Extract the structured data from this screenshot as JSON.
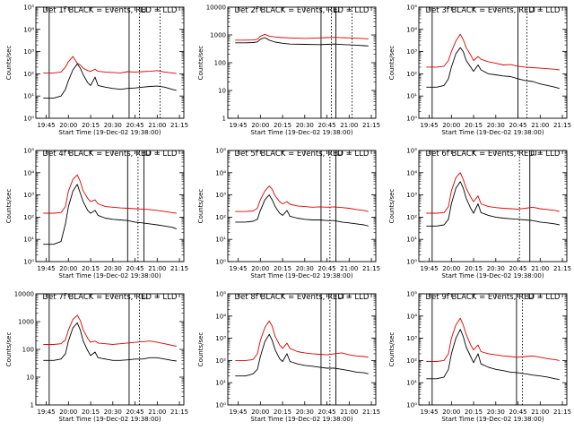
{
  "figure": {
    "x_tick_labels": [
      "19:45",
      "20:00",
      "20:15",
      "20:30",
      "20:45",
      "21:00",
      "21:15"
    ],
    "xlabel": "Start Time (19-Dec-02 19:38:00)",
    "ylabel": "Counts/sec",
    "colors": {
      "events": "#000000",
      "lld": "#dd0000"
    }
  },
  "chart_data": [
    {
      "type": "line",
      "title": "Det 1f BLACK = Events, RED = LLD",
      "xlabel": "Start Time (19-Dec-02 19:38:00)",
      "ylabel": "Counts/sec",
      "y_scale": "log",
      "ylim": [
        1,
        100000
      ],
      "y_ticks": [
        1,
        10,
        100,
        1000,
        10000,
        100000
      ],
      "y_tick_labels": [
        "10⁰",
        "10¹",
        "10²",
        "10³",
        "10⁴",
        "10⁵"
      ],
      "x": [
        "19:43",
        "19:50",
        "19:55",
        "19:58",
        "20:00",
        "20:03",
        "20:06",
        "20:08",
        "20:10",
        "20:13",
        "20:15",
        "20:18",
        "20:20",
        "20:25",
        "20:30",
        "20:35",
        "20:40",
        "20:45",
        "20:50",
        "20:55",
        "21:00",
        "21:05",
        "21:10",
        "21:13"
      ],
      "series": [
        {
          "name": "BLACK = Events",
          "values": [
            8,
            8,
            10,
            20,
            50,
            150,
            280,
            180,
            90,
            40,
            30,
            70,
            30,
            25,
            22,
            20,
            22,
            23,
            25,
            27,
            28,
            25,
            20,
            18
          ]
        },
        {
          "name": "RED = LLD",
          "values": [
            110,
            110,
            120,
            200,
            350,
            600,
            300,
            250,
            180,
            140,
            130,
            160,
            130,
            120,
            115,
            110,
            125,
            120,
            125,
            130,
            140,
            120,
            110,
            105
          ]
        }
      ],
      "vertical_lines": [
        "19:47",
        "20:41"
      ],
      "dotted_lines": [
        "20:48",
        "21:02"
      ],
      "marker": "20:49"
    },
    {
      "type": "line",
      "title": "Det 2f BLACK = Events, RED = LLD",
      "xlabel": "Start Time (19-Dec-02 19:38:00)",
      "ylabel": "Counts/sec",
      "y_scale": "log",
      "ylim": [
        1,
        10000
      ],
      "y_ticks": [
        1,
        10,
        100,
        1000,
        10000
      ],
      "y_tick_labels": [
        "1",
        "10",
        "100",
        "1000",
        "10000"
      ],
      "x": [
        "19:43",
        "19:50",
        "19:55",
        "19:58",
        "20:00",
        "20:03",
        "20:06",
        "20:10",
        "20:15",
        "20:20",
        "20:30",
        "20:40",
        "20:45",
        "20:50",
        "21:00",
        "21:05",
        "21:10",
        "21:13"
      ],
      "series": [
        {
          "name": "BLACK = Events",
          "values": [
            520,
            520,
            530,
            560,
            700,
            800,
            650,
            550,
            500,
            470,
            460,
            450,
            460,
            470,
            440,
            430,
            410,
            400
          ]
        },
        {
          "name": "RED = LLD",
          "values": [
            650,
            650,
            660,
            700,
            900,
            1050,
            900,
            850,
            800,
            780,
            750,
            780,
            800,
            820,
            780,
            760,
            740,
            720
          ]
        }
      ],
      "vertical_lines": [
        "20:41",
        "20:51"
      ],
      "dotted_lines": [
        "20:48",
        "21:02"
      ],
      "marker": "20:50"
    },
    {
      "type": "line",
      "title": "Det 3f BLACK = Events, RED = LLD",
      "xlabel": "Start Time (19-Dec-02 19:38:00)",
      "ylabel": "Counts/sec",
      "y_scale": "log",
      "ylim": [
        1,
        100000
      ],
      "y_ticks": [
        1,
        10,
        100,
        1000,
        10000,
        100000
      ],
      "y_tick_labels": [
        "10⁰",
        "10¹",
        "10²",
        "10³",
        "10⁴",
        "10⁵"
      ],
      "x": [
        "19:43",
        "19:50",
        "19:55",
        "19:58",
        "20:00",
        "20:03",
        "20:06",
        "20:08",
        "20:10",
        "20:13",
        "20:15",
        "20:18",
        "20:20",
        "20:25",
        "20:30",
        "20:35",
        "20:40",
        "20:45",
        "20:50",
        "20:55",
        "21:00",
        "21:05",
        "21:10",
        "21:13"
      ],
      "series": [
        {
          "name": "BLACK = Events",
          "values": [
            25,
            25,
            30,
            60,
            200,
            800,
            1500,
            1000,
            400,
            200,
            130,
            250,
            150,
            100,
            90,
            80,
            75,
            60,
            50,
            45,
            35,
            30,
            25,
            22
          ]
        },
        {
          "name": "RED = LLD",
          "values": [
            200,
            200,
            220,
            400,
            1000,
            3000,
            6000,
            3500,
            1500,
            700,
            400,
            600,
            450,
            350,
            300,
            250,
            260,
            220,
            200,
            190,
            180,
            170,
            160,
            150
          ]
        }
      ],
      "vertical_lines": [
        "19:47",
        "20:45"
      ],
      "dotted_lines": [
        "20:51"
      ],
      "marker": "20:53"
    },
    {
      "type": "line",
      "title": "Det 4f BLACK = Events, RED = LLD",
      "xlabel": "Start Time (19-Dec-02 19:38:00)",
      "ylabel": "Counts/sec",
      "y_scale": "log",
      "ylim": [
        1,
        100000
      ],
      "y_ticks": [
        1,
        10,
        100,
        1000,
        10000,
        100000
      ],
      "y_tick_labels": [
        "10⁰",
        "10¹",
        "10²",
        "10³",
        "10⁴",
        "10⁵"
      ],
      "x": [
        "19:43",
        "19:50",
        "19:55",
        "19:58",
        "20:00",
        "20:03",
        "20:06",
        "20:08",
        "20:10",
        "20:13",
        "20:15",
        "20:18",
        "20:20",
        "20:25",
        "20:30",
        "20:35",
        "20:40",
        "20:45",
        "20:50",
        "20:55",
        "21:00",
        "21:05",
        "21:10",
        "21:13"
      ],
      "series": [
        {
          "name": "BLACK = Events",
          "values": [
            6,
            6,
            8,
            50,
            300,
            1500,
            3000,
            1200,
            500,
            200,
            150,
            200,
            120,
            90,
            80,
            75,
            70,
            60,
            55,
            50,
            45,
            40,
            35,
            30
          ]
        },
        {
          "name": "RED = LLD",
          "values": [
            150,
            150,
            160,
            300,
            1500,
            5000,
            8000,
            4000,
            1500,
            700,
            500,
            600,
            400,
            300,
            280,
            260,
            250,
            240,
            230,
            220,
            200,
            180,
            160,
            150
          ]
        }
      ],
      "vertical_lines": [
        "19:47",
        "20:40",
        "20:51"
      ],
      "dotted_lines": [
        "20:47"
      ],
      "marker": "20:52"
    },
    {
      "type": "line",
      "title": "Det 5f BLACK = Events, RED = LLD",
      "xlabel": "Start Time (19-Dec-02 19:38:00)",
      "ylabel": "Counts/sec",
      "y_scale": "log",
      "ylim": [
        1,
        100000
      ],
      "y_ticks": [
        1,
        10,
        100,
        1000,
        10000,
        100000
      ],
      "y_tick_labels": [
        "10⁰",
        "10¹",
        "10²",
        "10³",
        "10⁴",
        "10⁵"
      ],
      "x": [
        "19:43",
        "19:50",
        "19:55",
        "19:58",
        "20:00",
        "20:03",
        "20:06",
        "20:08",
        "20:10",
        "20:13",
        "20:15",
        "20:18",
        "20:20",
        "20:25",
        "20:30",
        "20:35",
        "20:40",
        "20:45",
        "20:50",
        "20:55",
        "21:00",
        "21:05",
        "21:10",
        "21:13"
      ],
      "series": [
        {
          "name": "BLACK = Events",
          "values": [
            60,
            60,
            65,
            80,
            200,
            600,
            1000,
            600,
            300,
            150,
            120,
            200,
            110,
            90,
            80,
            75,
            75,
            70,
            70,
            60,
            55,
            50,
            45,
            40
          ]
        },
        {
          "name": "RED = LLD",
          "values": [
            180,
            180,
            190,
            250,
            600,
            1500,
            2500,
            1800,
            900,
            500,
            400,
            500,
            380,
            320,
            300,
            280,
            290,
            280,
            290,
            270,
            250,
            220,
            200,
            180
          ]
        }
      ],
      "vertical_lines": [
        "20:41",
        "20:51"
      ],
      "dotted_lines": [
        "20:47"
      ],
      "marker": "20:52"
    },
    {
      "type": "line",
      "title": "Det 6f BLACK = Events, RED = LLD",
      "xlabel": "Start Time (19-Dec-02 19:38:00)",
      "ylabel": "Counts/sec",
      "y_scale": "log",
      "ylim": [
        1,
        100000
      ],
      "y_ticks": [
        1,
        10,
        100,
        1000,
        10000,
        100000
      ],
      "y_tick_labels": [
        "10⁰",
        "10¹",
        "10²",
        "10³",
        "10⁴",
        "10⁵"
      ],
      "x": [
        "19:43",
        "19:50",
        "19:55",
        "19:58",
        "20:00",
        "20:03",
        "20:06",
        "20:08",
        "20:10",
        "20:13",
        "20:15",
        "20:18",
        "20:20",
        "20:25",
        "20:30",
        "20:35",
        "20:40",
        "20:45",
        "20:50",
        "20:55",
        "21:00",
        "21:05",
        "21:10",
        "21:13"
      ],
      "series": [
        {
          "name": "BLACK = Events",
          "values": [
            40,
            40,
            45,
            80,
            400,
            2000,
            4000,
            2000,
            700,
            250,
            150,
            400,
            160,
            120,
            100,
            90,
            85,
            80,
            75,
            70,
            60,
            55,
            50,
            45
          ]
        },
        {
          "name": "RED = LLD",
          "values": [
            150,
            150,
            160,
            300,
            1500,
            6000,
            10000,
            5000,
            2000,
            800,
            500,
            900,
            400,
            300,
            270,
            250,
            240,
            230,
            250,
            280,
            240,
            220,
            200,
            180
          ]
        }
      ],
      "vertical_lines": [
        "19:47",
        "20:53"
      ],
      "dotted_lines": [
        "20:46"
      ],
      "marker": "20:54"
    },
    {
      "type": "line",
      "title": "Det 7f BLACK = Events, RED = LLD",
      "xlabel": "Start Time (19-Dec-02 19:38:00)",
      "ylabel": "Counts/sec",
      "y_scale": "log",
      "ylim": [
        1,
        10000
      ],
      "y_ticks": [
        1,
        10,
        100,
        1000,
        10000
      ],
      "y_tick_labels": [
        "1",
        "10",
        "100",
        "1000",
        "10000"
      ],
      "x": [
        "19:43",
        "19:50",
        "19:55",
        "19:58",
        "20:00",
        "20:03",
        "20:06",
        "20:08",
        "20:10",
        "20:13",
        "20:15",
        "20:18",
        "20:20",
        "20:25",
        "20:30",
        "20:35",
        "20:40",
        "20:45",
        "20:50",
        "20:55",
        "21:00",
        "21:05",
        "21:10",
        "21:13"
      ],
      "series": [
        {
          "name": "BLACK = Events",
          "values": [
            40,
            40,
            45,
            70,
            200,
            600,
            900,
            500,
            200,
            90,
            60,
            80,
            50,
            45,
            40,
            40,
            42,
            45,
            45,
            50,
            50,
            45,
            40,
            38
          ]
        },
        {
          "name": "RED = LLD",
          "values": [
            150,
            150,
            160,
            220,
            500,
            1200,
            1700,
            1100,
            500,
            250,
            180,
            200,
            170,
            160,
            150,
            160,
            170,
            180,
            190,
            200,
            180,
            160,
            140,
            130
          ]
        }
      ],
      "vertical_lines": [
        "19:47",
        "20:41"
      ],
      "dotted_lines": [
        "20:48"
      ],
      "marker": "20:50"
    },
    {
      "type": "line",
      "title": "Det 8f BLACK = Events, RED = LLD",
      "xlabel": "Start Time (19-Dec-02 19:38:00)",
      "ylabel": "Counts/sec",
      "y_scale": "log",
      "ylim": [
        1,
        100000
      ],
      "y_ticks": [
        1,
        10,
        100,
        1000,
        10000,
        100000
      ],
      "y_tick_labels": [
        "10⁰",
        "10¹",
        "10²",
        "10³",
        "10⁴",
        "10⁵"
      ],
      "x": [
        "19:43",
        "19:50",
        "19:55",
        "19:58",
        "20:00",
        "20:03",
        "20:06",
        "20:08",
        "20:10",
        "20:13",
        "20:15",
        "20:18",
        "20:20",
        "20:25",
        "20:30",
        "20:35",
        "20:40",
        "20:45",
        "20:50",
        "20:55",
        "21:00",
        "21:05",
        "21:10",
        "21:13"
      ],
      "series": [
        {
          "name": "BLACK = Events",
          "values": [
            20,
            20,
            25,
            40,
            150,
            700,
            1500,
            800,
            300,
            120,
            90,
            200,
            90,
            70,
            60,
            55,
            50,
            45,
            45,
            40,
            35,
            30,
            28,
            25
          ]
        },
        {
          "name": "RED = LLD",
          "values": [
            100,
            100,
            110,
            200,
            800,
            3000,
            6000,
            3500,
            1200,
            500,
            350,
            600,
            350,
            250,
            220,
            200,
            190,
            180,
            200,
            220,
            180,
            160,
            150,
            140
          ]
        }
      ],
      "vertical_lines": [
        "20:41",
        "20:51"
      ],
      "dotted_lines": [
        "20:47"
      ],
      "marker": "20:53"
    },
    {
      "type": "line",
      "title": "Det 9f BLACK = Events, RED = LLD",
      "xlabel": "Start Time (19-Dec-02 19:38:00)",
      "ylabel": "Counts/sec",
      "y_scale": "log",
      "ylim": [
        1,
        100000
      ],
      "y_ticks": [
        1,
        10,
        100,
        1000,
        10000,
        100000
      ],
      "y_tick_labels": [
        "10⁰",
        "10¹",
        "10²",
        "10³",
        "10⁴",
        "10⁵"
      ],
      "x": [
        "19:43",
        "19:50",
        "19:55",
        "19:58",
        "20:00",
        "20:03",
        "20:06",
        "20:08",
        "20:10",
        "20:13",
        "20:15",
        "20:18",
        "20:20",
        "20:25",
        "20:30",
        "20:35",
        "20:40",
        "20:45",
        "20:50",
        "20:55",
        "21:00",
        "21:05",
        "21:10",
        "21:13"
      ],
      "series": [
        {
          "name": "BLACK = Events",
          "values": [
            15,
            15,
            18,
            40,
            200,
            1000,
            2500,
            1200,
            400,
            150,
            80,
            200,
            70,
            50,
            40,
            35,
            30,
            28,
            25,
            22,
            20,
            18,
            15,
            14
          ]
        },
        {
          "name": "RED = LLD",
          "values": [
            90,
            90,
            100,
            200,
            1000,
            4000,
            8000,
            4000,
            1500,
            500,
            300,
            500,
            250,
            200,
            180,
            160,
            150,
            140,
            150,
            160,
            140,
            120,
            110,
            100
          ]
        }
      ],
      "vertical_lines": [
        "19:47",
        "20:44"
      ],
      "dotted_lines": [
        "20:48"
      ],
      "marker": "20:52"
    }
  ]
}
